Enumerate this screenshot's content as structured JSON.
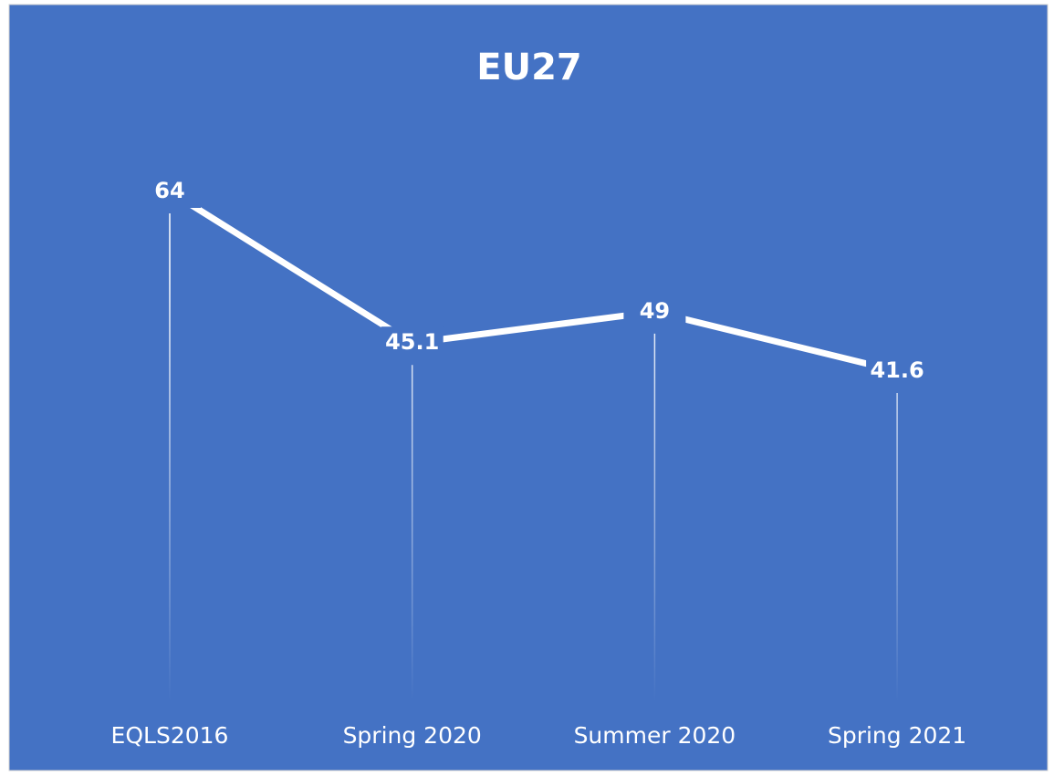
{
  "chart_data": {
    "type": "line",
    "title": "EU27",
    "categories": [
      "EQLS2016",
      "Spring 2020",
      "Summer 2020",
      "Spring 2021"
    ],
    "series": [
      {
        "name": null,
        "color": "#ffffff",
        "values": [
          64,
          45.1,
          49,
          41.6
        ]
      }
    ],
    "background": "#4472c4",
    "drop_lines": true
  }
}
